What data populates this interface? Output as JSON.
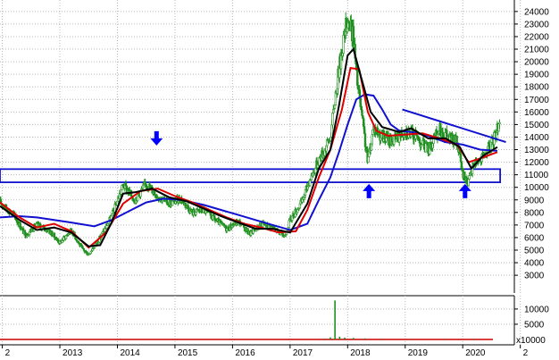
{
  "chart_data": {
    "type": "candlestick",
    "grid": true,
    "colors": {
      "candles": "#1f8f1f",
      "ma_short": "#000000",
      "ma_medium": "#dd0000",
      "ma_long": "#1010d0",
      "annotations": "#0000ff",
      "volume_baseline": "#cc0000"
    },
    "x_axis": {
      "range": [
        2011.96,
        2020.85
      ],
      "ticks": [
        "2",
        "2013",
        "2014",
        "2015",
        "2016",
        "2017",
        "2018",
        "2019",
        "2020",
        "2"
      ],
      "tick_positions": [
        2012,
        2013,
        2014,
        2015,
        2016,
        2017,
        2018,
        2019,
        2020,
        2021
      ]
    },
    "y_axis": {
      "range": [
        1800,
        24700
      ],
      "ticks": [
        "24000",
        "23000",
        "22000",
        "21000",
        "20000",
        "19000",
        "18000",
        "17000",
        "16000",
        "15000",
        "14000",
        "13000",
        "12000",
        "11000",
        "10000",
        "9000",
        "8000",
        "7000",
        "6000",
        "5000",
        "4000",
        "3000"
      ],
      "tick_values": [
        24000,
        23000,
        22000,
        21000,
        20000,
        19000,
        18000,
        17000,
        16000,
        15000,
        14000,
        13000,
        12000,
        11000,
        10000,
        9000,
        8000,
        7000,
        6000,
        5000,
        4000,
        3000
      ]
    },
    "price": {
      "x": [
        2011.96,
        2012.2,
        2012.4,
        2012.6,
        2012.8,
        2013.0,
        2013.2,
        2013.4,
        2013.5,
        2013.7,
        2013.9,
        2014.1,
        2014.3,
        2014.5,
        2014.7,
        2014.9,
        2015.1,
        2015.3,
        2015.5,
        2015.7,
        2015.9,
        2016.1,
        2016.3,
        2016.5,
        2016.7,
        2016.9,
        2017.0,
        2017.2,
        2017.35,
        2017.5,
        2017.6,
        2017.7,
        2017.8,
        2017.9,
        2018.0,
        2018.1,
        2018.15,
        2018.25,
        2018.35,
        2018.45,
        2018.6,
        2018.8,
        2019.0,
        2019.2,
        2019.4,
        2019.6,
        2019.8,
        2019.9,
        2020.0,
        2020.1,
        2020.2,
        2020.35,
        2020.5,
        2020.65
      ],
      "close": [
        8800,
        7800,
        6200,
        7000,
        6600,
        5600,
        6600,
        5000,
        4700,
        6000,
        7700,
        10200,
        9000,
        10300,
        9300,
        8700,
        9100,
        8000,
        8200,
        7400,
        6700,
        7300,
        6300,
        7100,
        6800,
        6100,
        7400,
        8800,
        10700,
        12200,
        13000,
        14000,
        17800,
        21000,
        23500,
        22000,
        19000,
        15500,
        12000,
        14800,
        14000,
        13700,
        14600,
        14000,
        13000,
        14600,
        13800,
        13600,
        11000,
        10400,
        12000,
        12300,
        13400,
        15400
      ]
    },
    "ma_short": {
      "x": [
        2011.96,
        2012.3,
        2012.6,
        2012.9,
        2013.2,
        2013.5,
        2013.7,
        2013.9,
        2014.1,
        2014.3,
        2014.6,
        2014.9,
        2015.2,
        2015.5,
        2015.8,
        2016.1,
        2016.4,
        2016.7,
        2017.0,
        2017.3,
        2017.5,
        2017.7,
        2017.85,
        2018.0,
        2018.1,
        2018.25,
        2018.4,
        2018.6,
        2018.9,
        2019.1,
        2019.4,
        2019.7,
        2019.95,
        2020.15,
        2020.35,
        2020.6
      ],
      "values": [
        8500,
        7400,
        6600,
        6800,
        6400,
        5300,
        5400,
        7200,
        9500,
        9600,
        9900,
        9200,
        8900,
        8300,
        7700,
        7200,
        6700,
        6700,
        6400,
        8700,
        11500,
        13000,
        16500,
        20500,
        21000,
        18500,
        16000,
        14800,
        14400,
        14700,
        13900,
        13900,
        13200,
        11500,
        12500,
        13200
      ]
    },
    "ma_medium": {
      "x": [
        2011.96,
        2012.3,
        2012.6,
        2012.9,
        2013.2,
        2013.5,
        2013.8,
        2014.1,
        2014.4,
        2014.7,
        2015.0,
        2015.3,
        2015.6,
        2015.9,
        2016.2,
        2016.5,
        2016.8,
        2017.1,
        2017.3,
        2017.5,
        2017.7,
        2017.9,
        2018.05,
        2018.2,
        2018.35,
        2018.5,
        2018.7,
        2019.0,
        2019.3,
        2019.6,
        2019.9,
        2020.1,
        2020.3,
        2020.6
      ],
      "values": [
        8800,
        7600,
        6800,
        7100,
        6500,
        5200,
        6400,
        8700,
        9700,
        9900,
        9300,
        8800,
        8200,
        7600,
        7100,
        6800,
        6400,
        6500,
        8200,
        10800,
        13000,
        16200,
        19500,
        19400,
        16000,
        14500,
        14100,
        14200,
        14300,
        13900,
        13400,
        12000,
        12300,
        12800
      ]
    },
    "ma_long": {
      "x": [
        2011.96,
        2012.3,
        2012.6,
        2012.9,
        2013.2,
        2013.6,
        2013.9,
        2014.2,
        2014.5,
        2014.8,
        2015.1,
        2015.5,
        2015.8,
        2016.1,
        2016.4,
        2016.7,
        2017.0,
        2017.3,
        2017.5,
        2017.7,
        2017.85,
        2018.0,
        2018.15,
        2018.3,
        2018.45,
        2018.6,
        2018.75,
        2018.9,
        2019.1,
        2019.4,
        2019.7,
        2020.0,
        2020.3,
        2020.6
      ],
      "values": [
        7600,
        7700,
        7600,
        7400,
        7200,
        6900,
        7400,
        8100,
        8800,
        9100,
        9000,
        8600,
        8200,
        7800,
        7400,
        7000,
        6600,
        7100,
        9000,
        10800,
        12800,
        15000,
        17000,
        17400,
        17300,
        16200,
        15000,
        14500,
        14400,
        14100,
        13600,
        13400,
        13000,
        12900
      ]
    },
    "support_zone": {
      "low": 10400,
      "high": 11450,
      "x": [
        2011.96,
        2020.65
      ]
    },
    "trend_line": {
      "x": [
        2018.95,
        2020.75
      ],
      "y": [
        16200,
        13600
      ]
    },
    "arrows": [
      {
        "direction": "down",
        "x": 2014.68,
        "y": 13900
      },
      {
        "direction": "up",
        "x": 2018.37,
        "y": 9700
      },
      {
        "direction": "up",
        "x": 2020.04,
        "y": 9700
      }
    ],
    "volume": {
      "y_axis": {
        "range": [
          0,
          13500
        ],
        "ticks": [
          "10000",
          "5000"
        ],
        "tick_values": [
          10000,
          5000
        ],
        "unit_label": "x10000"
      },
      "x": [
        2017.6,
        2017.7,
        2017.78,
        2017.86,
        2017.95,
        2018.1,
        2018.3,
        2018.6,
        2019.1,
        2019.7,
        2020.2
      ],
      "values": [
        300,
        700,
        12800,
        900,
        600,
        500,
        350,
        250,
        200,
        200,
        250
      ]
    }
  }
}
